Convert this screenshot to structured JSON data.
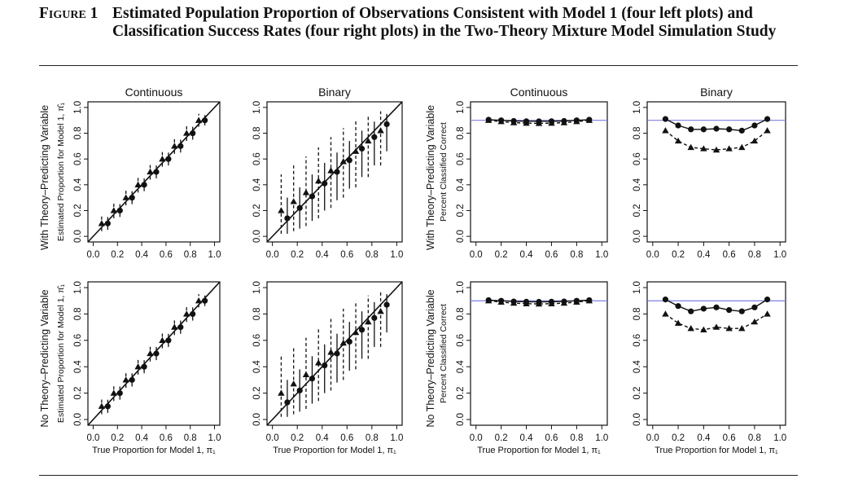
{
  "caption": {
    "label": "Figure 1",
    "title": "Estimated Population Proportion of Observations Consistent with Model 1 (four left plots) and Classification Success Rates (four right plots) in the Two-Theory Mixture Model Simulation Study"
  },
  "row_labels": [
    "With Theory–Predicting Variable",
    "No Theory–Predicting Variable"
  ],
  "colors": {
    "reference_line": "#7b7fe0",
    "ink": "#111111"
  },
  "chart_data": [
    {
      "type": "scatter",
      "title": "Continuous",
      "row": "With Theory–Predicting Variable",
      "xlabel": "",
      "ylabel": "Estimated Proportion for Model 1, π̂₁",
      "xlim": [
        0,
        1
      ],
      "ylim": [
        0,
        1
      ],
      "xticks": [
        "0.0",
        "0.2",
        "0.4",
        "0.6",
        "0.8",
        "1.0"
      ],
      "yticks": [
        "0.0",
        "0.2",
        "0.4",
        "0.6",
        "0.8",
        "1.0"
      ],
      "diagonal": true,
      "x": [
        0.1,
        0.2,
        0.3,
        0.4,
        0.5,
        0.6,
        0.7,
        0.8,
        0.9
      ],
      "series": [
        {
          "marker": "circle",
          "y": [
            0.1,
            0.2,
            0.3,
            0.4,
            0.5,
            0.6,
            0.7,
            0.8,
            0.9
          ],
          "lo": [
            0.05,
            0.15,
            0.25,
            0.35,
            0.45,
            0.55,
            0.65,
            0.75,
            0.86
          ],
          "hi": [
            0.15,
            0.25,
            0.35,
            0.45,
            0.55,
            0.65,
            0.75,
            0.85,
            0.94
          ]
        },
        {
          "marker": "triangle",
          "y": [
            0.1,
            0.2,
            0.3,
            0.4,
            0.5,
            0.6,
            0.7,
            0.8,
            0.9
          ],
          "lo": [
            0.04,
            0.14,
            0.24,
            0.34,
            0.44,
            0.54,
            0.64,
            0.74,
            0.85
          ],
          "hi": [
            0.16,
            0.26,
            0.36,
            0.46,
            0.56,
            0.66,
            0.76,
            0.86,
            0.95
          ]
        }
      ]
    },
    {
      "type": "scatter",
      "title": "Binary",
      "row": "With Theory–Predicting Variable",
      "xlabel": "",
      "ylabel": "",
      "xlim": [
        0,
        1
      ],
      "ylim": [
        0,
        1
      ],
      "xticks": [
        "0.0",
        "0.2",
        "0.4",
        "0.6",
        "0.8",
        "1.0"
      ],
      "yticks": [
        "0.0",
        "0.2",
        "0.4",
        "0.6",
        "0.8",
        "1.0"
      ],
      "diagonal": true,
      "x": [
        0.1,
        0.2,
        0.3,
        0.4,
        0.5,
        0.6,
        0.7,
        0.8,
        0.9
      ],
      "series": [
        {
          "marker": "circle",
          "y": [
            0.14,
            0.22,
            0.31,
            0.41,
            0.5,
            0.59,
            0.68,
            0.77,
            0.87
          ],
          "lo": [
            0.02,
            0.06,
            0.12,
            0.2,
            0.28,
            0.37,
            0.46,
            0.55,
            0.66
          ],
          "hi": [
            0.3,
            0.38,
            0.48,
            0.57,
            0.65,
            0.74,
            0.82,
            0.89,
            0.95
          ]
        },
        {
          "marker": "triangle",
          "y": [
            0.2,
            0.27,
            0.34,
            0.43,
            0.51,
            0.58,
            0.66,
            0.74,
            0.82
          ],
          "lo": [
            0.02,
            0.04,
            0.08,
            0.14,
            0.22,
            0.3,
            0.38,
            0.46,
            0.55
          ],
          "hi": [
            0.48,
            0.55,
            0.62,
            0.69,
            0.77,
            0.84,
            0.9,
            0.94,
            0.97
          ]
        }
      ]
    },
    {
      "type": "line",
      "title": "Continuous",
      "row": "With Theory–Predicting Variable",
      "xlabel": "",
      "ylabel": "Percent Classified Correct",
      "xlim": [
        0,
        1
      ],
      "ylim": [
        0,
        1
      ],
      "xticks": [
        "0.0",
        "0.2",
        "0.4",
        "0.6",
        "0.8",
        "1.0"
      ],
      "yticks": [
        "0.0",
        "0.2",
        "0.4",
        "0.6",
        "0.8",
        "1.0"
      ],
      "reference_line": 0.9,
      "x": [
        0.1,
        0.2,
        0.3,
        0.4,
        0.5,
        0.6,
        0.7,
        0.8,
        0.9
      ],
      "series": [
        {
          "marker": "circle",
          "style": "solid",
          "y": [
            0.905,
            0.9,
            0.895,
            0.893,
            0.892,
            0.893,
            0.895,
            0.9,
            0.905
          ]
        },
        {
          "marker": "triangle",
          "style": "dashed",
          "y": [
            0.9,
            0.89,
            0.882,
            0.878,
            0.876,
            0.878,
            0.882,
            0.89,
            0.9
          ]
        }
      ]
    },
    {
      "type": "line",
      "title": "Binary",
      "row": "With Theory–Predicting Variable",
      "xlabel": "",
      "ylabel": "",
      "xlim": [
        0,
        1
      ],
      "ylim": [
        0,
        1
      ],
      "xticks": [
        "0.0",
        "0.2",
        "0.4",
        "0.6",
        "0.8",
        "1.0"
      ],
      "yticks": [
        "0.0",
        "0.2",
        "0.4",
        "0.6",
        "0.8",
        "1.0"
      ],
      "reference_line": 0.9,
      "x": [
        0.1,
        0.2,
        0.3,
        0.4,
        0.5,
        0.6,
        0.7,
        0.8,
        0.9
      ],
      "series": [
        {
          "marker": "circle",
          "style": "solid",
          "y": [
            0.91,
            0.86,
            0.83,
            0.83,
            0.835,
            0.83,
            0.82,
            0.86,
            0.91
          ]
        },
        {
          "marker": "triangle",
          "style": "dashed",
          "y": [
            0.82,
            0.74,
            0.69,
            0.68,
            0.67,
            0.68,
            0.69,
            0.74,
            0.82
          ]
        }
      ]
    },
    {
      "type": "scatter",
      "title": "",
      "row": "No Theory–Predicting Variable",
      "xlabel": "True Proportion for Model 1, π₁",
      "ylabel": "Estimated Proportion for Model 1, π̂₁",
      "xlim": [
        0,
        1
      ],
      "ylim": [
        0,
        1
      ],
      "xticks": [
        "0.0",
        "0.2",
        "0.4",
        "0.6",
        "0.8",
        "1.0"
      ],
      "yticks": [
        "0.0",
        "0.2",
        "0.4",
        "0.6",
        "0.8",
        "1.0"
      ],
      "diagonal": true,
      "x": [
        0.1,
        0.2,
        0.3,
        0.4,
        0.5,
        0.6,
        0.7,
        0.8,
        0.9
      ],
      "series": [
        {
          "marker": "circle",
          "y": [
            0.1,
            0.2,
            0.3,
            0.4,
            0.5,
            0.6,
            0.7,
            0.8,
            0.9
          ],
          "lo": [
            0.05,
            0.15,
            0.25,
            0.35,
            0.45,
            0.55,
            0.65,
            0.75,
            0.86
          ],
          "hi": [
            0.15,
            0.25,
            0.35,
            0.45,
            0.55,
            0.65,
            0.75,
            0.85,
            0.94
          ]
        },
        {
          "marker": "triangle",
          "y": [
            0.1,
            0.2,
            0.3,
            0.4,
            0.5,
            0.6,
            0.7,
            0.8,
            0.9
          ],
          "lo": [
            0.04,
            0.14,
            0.24,
            0.34,
            0.44,
            0.54,
            0.64,
            0.74,
            0.85
          ],
          "hi": [
            0.16,
            0.26,
            0.36,
            0.46,
            0.56,
            0.66,
            0.76,
            0.86,
            0.95
          ]
        }
      ]
    },
    {
      "type": "scatter",
      "title": "",
      "row": "No Theory–Predicting Variable",
      "xlabel": "True Proportion for Model 1, π₁",
      "ylabel": "",
      "xlim": [
        0,
        1
      ],
      "ylim": [
        0,
        1
      ],
      "xticks": [
        "0.0",
        "0.2",
        "0.4",
        "0.6",
        "0.8",
        "1.0"
      ],
      "yticks": [
        "0.0",
        "0.2",
        "0.4",
        "0.6",
        "0.8",
        "1.0"
      ],
      "diagonal": true,
      "x": [
        0.1,
        0.2,
        0.3,
        0.4,
        0.5,
        0.6,
        0.7,
        0.8,
        0.9
      ],
      "series": [
        {
          "marker": "circle",
          "y": [
            0.13,
            0.22,
            0.31,
            0.41,
            0.5,
            0.59,
            0.68,
            0.77,
            0.87
          ],
          "lo": [
            0.02,
            0.06,
            0.12,
            0.2,
            0.28,
            0.37,
            0.46,
            0.55,
            0.66
          ],
          "hi": [
            0.3,
            0.38,
            0.48,
            0.57,
            0.65,
            0.74,
            0.82,
            0.89,
            0.95
          ]
        },
        {
          "marker": "triangle",
          "y": [
            0.2,
            0.27,
            0.34,
            0.43,
            0.51,
            0.58,
            0.66,
            0.74,
            0.82
          ],
          "lo": [
            0.02,
            0.04,
            0.08,
            0.14,
            0.22,
            0.3,
            0.38,
            0.46,
            0.55
          ],
          "hi": [
            0.48,
            0.55,
            0.62,
            0.69,
            0.77,
            0.84,
            0.9,
            0.94,
            0.97
          ]
        }
      ]
    },
    {
      "type": "line",
      "title": "",
      "row": "No Theory–Predicting Variable",
      "xlabel": "True Proportion for Model 1, π₁",
      "ylabel": "Percent Classified Correct",
      "xlim": [
        0,
        1
      ],
      "ylim": [
        0,
        1
      ],
      "xticks": [
        "0.0",
        "0.2",
        "0.4",
        "0.6",
        "0.8",
        "1.0"
      ],
      "yticks": [
        "0.0",
        "0.2",
        "0.4",
        "0.6",
        "0.8",
        "1.0"
      ],
      "reference_line": 0.9,
      "x": [
        0.1,
        0.2,
        0.3,
        0.4,
        0.5,
        0.6,
        0.7,
        0.8,
        0.9
      ],
      "series": [
        {
          "marker": "circle",
          "style": "solid",
          "y": [
            0.905,
            0.9,
            0.895,
            0.893,
            0.892,
            0.893,
            0.895,
            0.9,
            0.905
          ]
        },
        {
          "marker": "triangle",
          "style": "dashed",
          "y": [
            0.9,
            0.89,
            0.882,
            0.878,
            0.876,
            0.878,
            0.882,
            0.89,
            0.9
          ]
        }
      ]
    },
    {
      "type": "line",
      "title": "",
      "row": "No Theory–Predicting Variable",
      "xlabel": "True Proportion for Model 1, π₁",
      "ylabel": "",
      "xlim": [
        0,
        1
      ],
      "ylim": [
        0,
        1
      ],
      "xticks": [
        "0.0",
        "0.2",
        "0.4",
        "0.6",
        "0.8",
        "1.0"
      ],
      "yticks": [
        "0.0",
        "0.2",
        "0.4",
        "0.6",
        "0.8",
        "1.0"
      ],
      "reference_line": 0.9,
      "x": [
        0.1,
        0.2,
        0.3,
        0.4,
        0.5,
        0.6,
        0.7,
        0.8,
        0.9
      ],
      "series": [
        {
          "marker": "circle",
          "style": "solid",
          "y": [
            0.91,
            0.86,
            0.82,
            0.84,
            0.85,
            0.83,
            0.82,
            0.85,
            0.91
          ]
        },
        {
          "marker": "triangle",
          "style": "dashed",
          "y": [
            0.8,
            0.73,
            0.69,
            0.68,
            0.7,
            0.69,
            0.69,
            0.74,
            0.8
          ]
        }
      ]
    }
  ]
}
